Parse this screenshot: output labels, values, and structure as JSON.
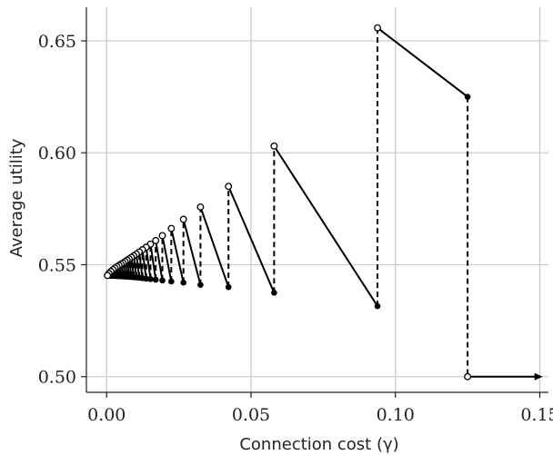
{
  "chart_data": {
    "type": "line",
    "title": "",
    "xlabel": "Connection cost (γ)",
    "ylabel": "Average utility",
    "xlim": [
      -0.007,
      0.153
    ],
    "ylim": [
      0.493,
      0.665
    ],
    "grid": true,
    "x_ticks": [
      0.0,
      0.05,
      0.1,
      0.15
    ],
    "x_tick_labels": [
      "0.00",
      "0.05",
      "0.10",
      "0.15"
    ],
    "y_ticks": [
      0.5,
      0.55,
      0.6,
      0.65
    ],
    "y_tick_labels": [
      "0.50",
      "0.55",
      "0.60",
      "0.65"
    ],
    "series": [
      {
        "line_style": "solid-with-dashed-jumps",
        "color": "#000000",
        "segments": [
          {
            "start": [
              0.0938,
              0.6558
            ],
            "end": [
              0.125,
              0.625
            ]
          },
          {
            "start": [
              0.058,
              0.603
            ],
            "end": [
              0.0938,
              0.5315
            ]
          },
          {
            "start": [
              0.0422,
              0.585
            ],
            "end": [
              0.058,
              0.5375
            ]
          },
          {
            "start": [
              0.0325,
              0.5758
            ],
            "end": [
              0.0422,
              0.54
            ]
          },
          {
            "start": [
              0.0266,
              0.5703
            ],
            "end": [
              0.0325,
              0.541
            ]
          },
          {
            "start": [
              0.0224,
              0.5662
            ],
            "end": [
              0.0266,
              0.542
            ]
          },
          {
            "start": [
              0.0193,
              0.563
            ],
            "end": [
              0.0224,
              0.5425
            ]
          },
          {
            "start": [
              0.017,
              0.5608
            ],
            "end": [
              0.0193,
              0.543
            ]
          },
          {
            "start": [
              0.0152,
              0.5592
            ],
            "end": [
              0.017,
              0.5433
            ]
          },
          {
            "start": [
              0.0137,
              0.5578
            ],
            "end": [
              0.0152,
              0.5436
            ]
          },
          {
            "start": [
              0.0124,
              0.5567
            ],
            "end": [
              0.0137,
              0.5438
            ]
          },
          {
            "start": [
              0.0113,
              0.5557
            ],
            "end": [
              0.0124,
              0.544
            ]
          },
          {
            "start": [
              0.0103,
              0.5548
            ],
            "end": [
              0.0113,
              0.5442
            ]
          },
          {
            "start": [
              0.0094,
              0.554
            ],
            "end": [
              0.0103,
              0.5443
            ]
          },
          {
            "start": [
              0.0086,
              0.5533
            ],
            "end": [
              0.0094,
              0.5444
            ]
          },
          {
            "start": [
              0.0078,
              0.5526
            ],
            "end": [
              0.0086,
              0.5445
            ]
          },
          {
            "start": [
              0.0071,
              0.552
            ],
            "end": [
              0.0078,
              0.5446
            ]
          },
          {
            "start": [
              0.0064,
              0.5514
            ],
            "end": [
              0.0071,
              0.5447
            ]
          },
          {
            "start": [
              0.0057,
              0.5508
            ],
            "end": [
              0.0064,
              0.5447
            ]
          },
          {
            "start": [
              0.005,
              0.5503
            ],
            "end": [
              0.0057,
              0.5448
            ]
          },
          {
            "start": [
              0.0043,
              0.5497
            ],
            "end": [
              0.005,
              0.5448
            ]
          },
          {
            "start": [
              0.0036,
              0.5491
            ],
            "end": [
              0.0043,
              0.5449
            ]
          },
          {
            "start": [
              0.0029,
              0.5485
            ],
            "end": [
              0.0036,
              0.5449
            ]
          },
          {
            "start": [
              0.0022,
              0.5478
            ],
            "end": [
              0.0029,
              0.545
            ]
          },
          {
            "start": [
              0.0015,
              0.547
            ],
            "end": [
              0.0022,
              0.545
            ]
          },
          {
            "start": [
              0.0008,
              0.5461
            ],
            "end": [
              0.0015,
              0.545
            ]
          }
        ],
        "tail": {
          "start": [
            0.125,
            0.5
          ],
          "end": [
            0.151,
            0.5
          ],
          "arrow": true
        },
        "origin_point": [
          0.0003,
          0.5452
        ]
      }
    ]
  }
}
